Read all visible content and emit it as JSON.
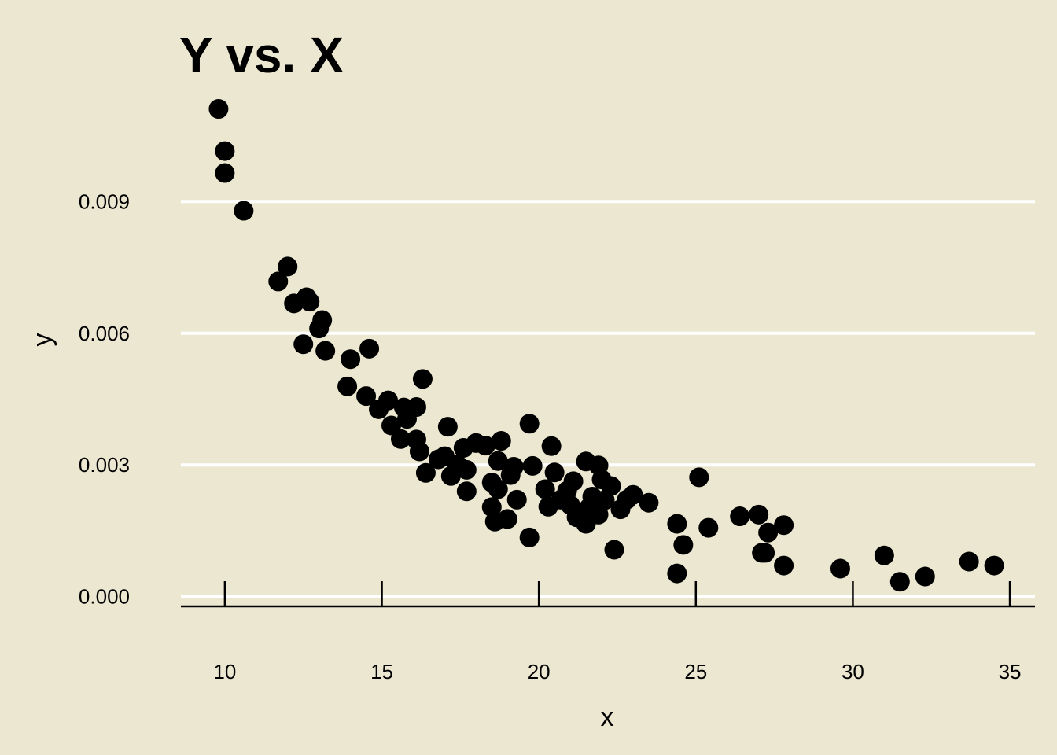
{
  "colors": {
    "background": "#ebe7d0",
    "gridline": "#ffffff",
    "axis": "#000000",
    "point": "#000000"
  },
  "chart_data": {
    "type": "scatter",
    "title": "Y vs. X",
    "xlabel": "x",
    "ylabel": "y",
    "xlim": [
      8.6,
      35.8
    ],
    "ylim": [
      -0.00022,
      0.0118
    ],
    "x_ticks": [
      10,
      15,
      20,
      25,
      30,
      35
    ],
    "x_tick_labels": [
      "10",
      "15",
      "20",
      "25",
      "30",
      "35"
    ],
    "y_ticks": [
      0,
      0.003,
      0.006,
      0.009
    ],
    "y_tick_labels": [
      "0.000",
      "0.003",
      "0.006",
      "0.009"
    ],
    "grid": "horizontal major lines only",
    "legend": "none",
    "series": [
      {
        "points": [
          [
            9.8,
            0.01111
          ],
          [
            10.0,
            0.01015
          ],
          [
            10.0,
            0.00965
          ],
          [
            10.6,
            0.00879
          ],
          [
            11.7,
            0.00718
          ],
          [
            12.0,
            0.00752
          ],
          [
            12.2,
            0.00668
          ],
          [
            12.5,
            0.00575
          ],
          [
            12.6,
            0.00682
          ],
          [
            12.7,
            0.00672
          ],
          [
            13.0,
            0.00611
          ],
          [
            13.1,
            0.0063
          ],
          [
            13.2,
            0.0056
          ],
          [
            13.9,
            0.00479
          ],
          [
            14.0,
            0.00541
          ],
          [
            14.5,
            0.00457
          ],
          [
            14.6,
            0.00565
          ],
          [
            14.9,
            0.00427
          ],
          [
            15.2,
            0.00447
          ],
          [
            15.3,
            0.0039
          ],
          [
            15.6,
            0.00359
          ],
          [
            15.7,
            0.00431
          ],
          [
            15.8,
            0.00405
          ],
          [
            16.1,
            0.00432
          ],
          [
            16.1,
            0.00358
          ],
          [
            16.2,
            0.00331
          ],
          [
            16.3,
            0.00496
          ],
          [
            16.4,
            0.00282
          ],
          [
            16.8,
            0.00313
          ],
          [
            17.0,
            0.0032
          ],
          [
            17.1,
            0.00387
          ],
          [
            17.2,
            0.00275
          ],
          [
            17.4,
            0.00301
          ],
          [
            17.6,
            0.00339
          ],
          [
            17.7,
            0.00289
          ],
          [
            17.7,
            0.0024
          ],
          [
            18.0,
            0.0035
          ],
          [
            18.3,
            0.00344
          ],
          [
            18.5,
            0.0026
          ],
          [
            18.5,
            0.00204
          ],
          [
            18.6,
            0.00171
          ],
          [
            18.7,
            0.00309
          ],
          [
            18.7,
            0.00245
          ],
          [
            18.8,
            0.00355
          ],
          [
            19.0,
            0.00177
          ],
          [
            19.1,
            0.00277
          ],
          [
            19.2,
            0.00296
          ],
          [
            19.3,
            0.00221
          ],
          [
            19.7,
            0.00394
          ],
          [
            19.7,
            0.00135
          ],
          [
            19.8,
            0.00298
          ],
          [
            20.2,
            0.00245
          ],
          [
            20.3,
            0.00205
          ],
          [
            20.4,
            0.00343
          ],
          [
            20.5,
            0.00283
          ],
          [
            20.7,
            0.00221
          ],
          [
            20.9,
            0.00241
          ],
          [
            21.0,
            0.00209
          ],
          [
            21.1,
            0.00263
          ],
          [
            21.2,
            0.00181
          ],
          [
            21.4,
            0.00189
          ],
          [
            21.5,
            0.00308
          ],
          [
            21.5,
            0.00166
          ],
          [
            21.6,
            0.00203
          ],
          [
            21.7,
            0.00228
          ],
          [
            21.8,
            0.00213
          ],
          [
            21.9,
            0.00299
          ],
          [
            21.9,
            0.00187
          ],
          [
            22.0,
            0.00267
          ],
          [
            22.1,
            0.0022
          ],
          [
            22.3,
            0.00252
          ],
          [
            22.4,
            0.00107
          ],
          [
            22.6,
            0.00199
          ],
          [
            22.8,
            0.00221
          ],
          [
            23.0,
            0.00232
          ],
          [
            23.5,
            0.00214
          ],
          [
            24.4,
            0.00166
          ],
          [
            24.4,
            0.00053
          ],
          [
            24.6,
            0.00118
          ],
          [
            25.1,
            0.00272
          ],
          [
            25.4,
            0.00157
          ],
          [
            26.4,
            0.00183
          ],
          [
            27.0,
            0.00187
          ],
          [
            27.1,
            0.001
          ],
          [
            27.2,
            0.001
          ],
          [
            27.3,
            0.00146
          ],
          [
            27.8,
            0.00071
          ],
          [
            27.8,
            0.00163
          ],
          [
            29.6,
            0.00064
          ],
          [
            31.0,
            0.00094
          ],
          [
            31.5,
            0.00034
          ],
          [
            32.3,
            0.00046
          ],
          [
            33.7,
            0.0008
          ],
          [
            34.5,
            0.00071
          ]
        ]
      }
    ]
  }
}
